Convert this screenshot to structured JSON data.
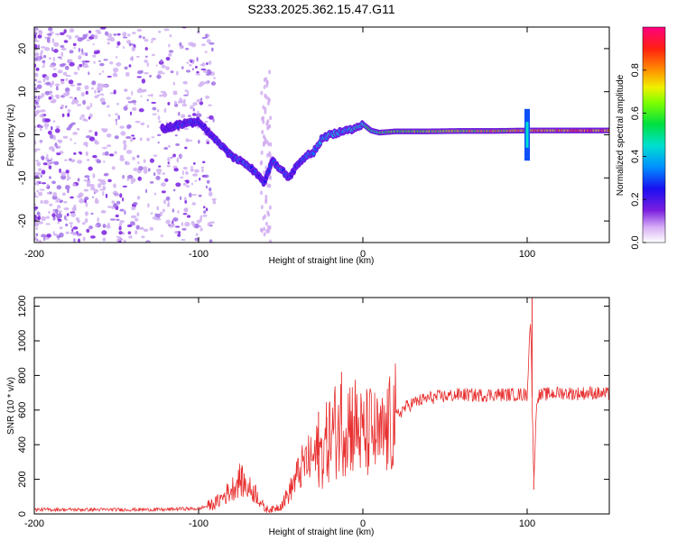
{
  "title": "S233.2025.362.15.47.G11",
  "colors": {
    "snr_line": "#e83030",
    "frame": "#000000",
    "speckle": "#a050e0"
  },
  "chart_data": [
    {
      "type": "heatmap",
      "name": "spectrogram",
      "xlabel": "Height of straight line (km)",
      "ylabel": "Frequency (Hz)",
      "xlim": [
        -200,
        150
      ],
      "ylim": [
        -25,
        25
      ],
      "xticks": [
        -200,
        -100,
        0,
        100
      ],
      "yticks": [
        -20,
        -10,
        0,
        10,
        20
      ],
      "colorbar": {
        "label": "Normalized spectral amplitude",
        "range": [
          0,
          1
        ],
        "ticks": [
          0.0,
          0.2,
          0.4,
          0.6,
          0.8
        ]
      },
      "ridge": {
        "x": [
          -120,
          -110,
          -100,
          -95,
          -90,
          -85,
          -80,
          -75,
          -70,
          -65,
          -60,
          -55,
          -50,
          -45,
          -40,
          -35,
          -30,
          -25,
          -20,
          -15,
          -10,
          -5,
          0,
          5,
          10,
          20,
          40,
          60,
          80,
          100,
          120,
          150
        ],
        "freq": [
          1.5,
          2.5,
          3.0,
          1.0,
          -1.0,
          -3.0,
          -5.0,
          -6.0,
          -7.0,
          -9.0,
          -11.0,
          -6.0,
          -8.0,
          -10.0,
          -7.0,
          -5.0,
          -4.0,
          -1.0,
          0.0,
          0.5,
          1.0,
          1.5,
          2.5,
          1.0,
          0.5,
          0.8,
          0.8,
          0.9,
          0.9,
          1.0,
          1.0,
          1.0
        ],
        "amp": [
          0.25,
          0.3,
          0.3,
          0.25,
          0.3,
          0.3,
          0.3,
          0.35,
          0.35,
          0.3,
          0.3,
          0.35,
          0.4,
          0.3,
          0.3,
          0.35,
          0.4,
          0.4,
          0.45,
          0.45,
          0.45,
          0.5,
          0.55,
          0.6,
          0.65,
          0.7,
          0.75,
          0.8,
          0.85,
          0.9,
          0.95,
          0.98
        ]
      }
    },
    {
      "type": "line",
      "name": "snr",
      "xlabel": "Height of straight line (km)",
      "ylabel": "SNR (10 * v/v)",
      "xlim": [
        -200,
        150
      ],
      "ylim": [
        0,
        1250
      ],
      "xticks": [
        -200,
        -100,
        0,
        100
      ],
      "yticks": [
        0,
        200,
        400,
        600,
        800,
        1000,
        1200
      ],
      "series": [
        {
          "name": "SNR",
          "x": [
            -200,
            -180,
            -160,
            -140,
            -120,
            -110,
            -100,
            -90,
            -85,
            -80,
            -75,
            -70,
            -65,
            -60,
            -55,
            -50,
            -45,
            -40,
            -35,
            -30,
            -25,
            -20,
            -15,
            -10,
            -5,
            0,
            5,
            10,
            15,
            20,
            25,
            30,
            40,
            50,
            60,
            70,
            80,
            90,
            100,
            102,
            104,
            106,
            110,
            120,
            130,
            140,
            150
          ],
          "y": [
            25,
            25,
            25,
            25,
            25,
            30,
            30,
            60,
            100,
            140,
            200,
            150,
            120,
            30,
            25,
            50,
            120,
            220,
            300,
            320,
            350,
            450,
            500,
            540,
            520,
            440,
            480,
            420,
            480,
            560,
            610,
            640,
            670,
            680,
            690,
            685,
            690,
            690,
            690,
            1150,
            200,
            680,
            690,
            700,
            695,
            700,
            690
          ],
          "spikes": [
            {
              "x": -13,
              "y": 820
            },
            {
              "x": -27,
              "y": 590
            },
            {
              "x": -22,
              "y": 560
            },
            {
              "x": -74,
              "y": 265
            },
            {
              "x": 103,
              "y": 1250
            },
            {
              "x": 104,
              "y": 140
            }
          ]
        }
      ]
    }
  ]
}
